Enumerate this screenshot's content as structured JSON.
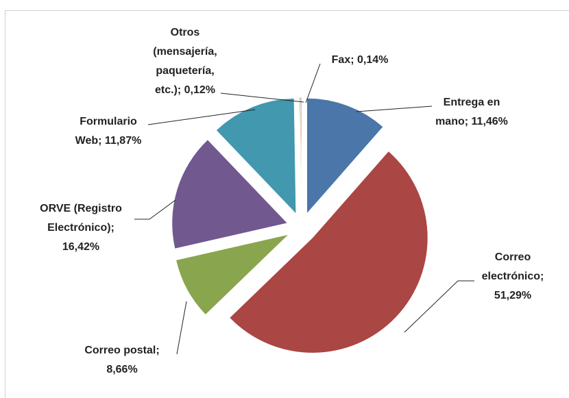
{
  "chart_data": {
    "type": "pie",
    "values": [
      11.46,
      51.29,
      8.66,
      16.42,
      11.87,
      0.12,
      0.14
    ],
    "value_labels": [
      [
        "Entrega en",
        "mano; 11,46%"
      ],
      [
        "Correo",
        "electrónico;",
        "51,29%"
      ],
      [
        "Correo postal;",
        "8,66%"
      ],
      [
        "ORVE (Registro",
        "Electrónico);",
        "16,42%"
      ],
      [
        "Formulario",
        "Web; 11,87%"
      ],
      [
        "Otros",
        "(mensajería,",
        "paquetería,",
        "etc.); 0,12%"
      ],
      [
        "Fax; 0,14%"
      ]
    ],
    "colors": [
      "#4a76a9",
      "#aa4643",
      "#89a54e",
      "#71588f",
      "#4198af",
      "#db843d",
      "#93a9cf"
    ],
    "exploded": true
  }
}
